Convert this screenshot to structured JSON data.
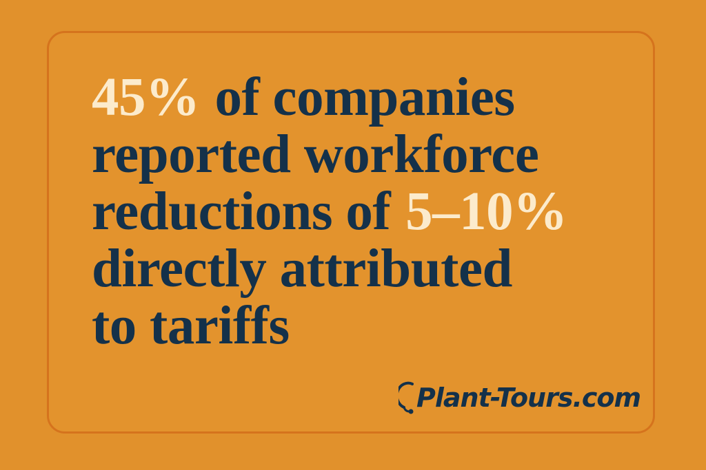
{
  "statement": {
    "lines": [
      [
        "45%",
        "of companies"
      ],
      [
        "reported workforce"
      ],
      [
        "reductions of",
        "5–10%"
      ],
      [
        "directly attributed"
      ],
      [
        "to tariffs"
      ]
    ]
  },
  "brand": "Plant-Tours.com"
}
